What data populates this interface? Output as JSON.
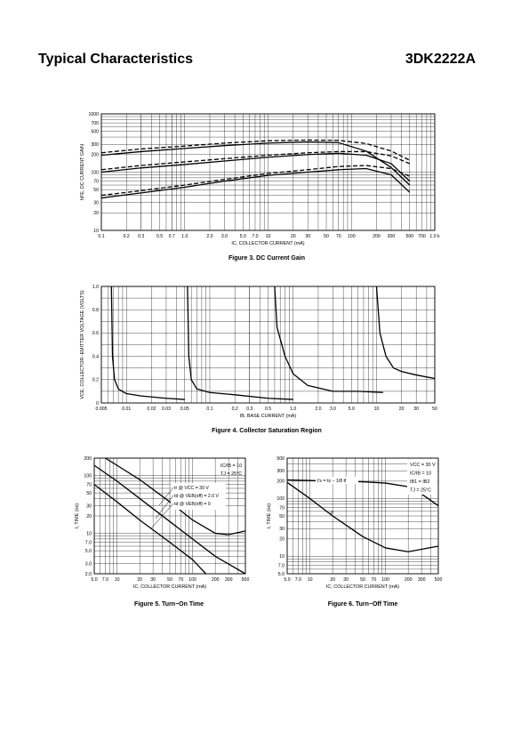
{
  "header": {
    "title": "Typical Characteristics",
    "part_number": "3DK2222A"
  },
  "figures": [
    {
      "caption": "Figure 3. DC Current Gain",
      "ylabel": "hFE, DC CURRENT GAIN",
      "xlabel": "IC, COLLECTOR CURRENT (mA)"
    },
    {
      "caption": "Figure 4. Collector Saturation Region",
      "ylabel": "VCE, COLLECTOR−EMITTER VOLTAGE (VOLTS)",
      "xlabel": "IB, BASE CURRENT (mA)"
    },
    {
      "caption": "Figure 5. Turn−On Time",
      "ylabel": "t, TIME (ns)",
      "xlabel": "IC, COLLECTOR CURRENT (mA)",
      "conditions": [
        "IC/IB = 10",
        "TJ = 25°C"
      ],
      "legend": [
        "tr @ VCC = 30 V",
        "td @ VEB(off) = 2.0 V",
        "td @ VEB(off) = 0"
      ]
    },
    {
      "caption": "Figure 6. Turn−Off Time",
      "ylabel": "t, TIME (ns)",
      "xlabel": "IC, COLLECTOR CURRENT (mA)",
      "conditions": [
        "VCC = 30 V",
        "IC/IB = 10",
        "IB1 = IB2",
        "TJ = 25°C"
      ],
      "legend": [
        "t′s = ts − 1/8 tf",
        "tf"
      ]
    }
  ],
  "chart_data": [
    {
      "type": "line",
      "title": "Figure 3. DC Current Gain",
      "xlabel": "IC, COLLECTOR CURRENT (mA)",
      "ylabel": "hFE, DC CURRENT GAIN",
      "x_scale": "log",
      "y_scale": "log",
      "xlim": [
        0.1,
        1000
      ],
      "ylim": [
        10,
        1000
      ],
      "x_ticks": [
        "0.1",
        "0.2",
        "0.3",
        "0.5",
        "0.7",
        "1.0",
        "2.0",
        "3.0",
        "5.0",
        "7.0",
        "10",
        "20",
        "30",
        "50",
        "70",
        "100",
        "200",
        "300",
        "500",
        "700",
        "1.0 k"
      ],
      "y_ticks": [
        "10",
        "20",
        "30",
        "50",
        "70",
        "100",
        "200",
        "300",
        "500",
        "700",
        "1000"
      ],
      "grid": true,
      "series": [
        {
          "style": "dashed",
          "x": [
            0.1,
            0.3,
            1,
            3,
            10,
            30,
            70,
            150,
            300,
            500
          ],
          "y": [
            215,
            250,
            280,
            315,
            345,
            355,
            350,
            310,
            230,
            160
          ]
        },
        {
          "style": "solid",
          "x": [
            0.1,
            0.3,
            1,
            3,
            10,
            30,
            70,
            150,
            300,
            500
          ],
          "y": [
            195,
            225,
            255,
            285,
            315,
            330,
            320,
            230,
            120,
            60
          ]
        },
        {
          "style": "dashed",
          "x": [
            0.1,
            0.3,
            1,
            3,
            10,
            30,
            70,
            150,
            300,
            500
          ],
          "y": [
            110,
            130,
            150,
            170,
            195,
            215,
            225,
            225,
            190,
            140
          ]
        },
        {
          "style": "solid",
          "x": [
            0.1,
            0.3,
            1,
            3,
            10,
            30,
            70,
            150,
            300,
            500
          ],
          "y": [
            100,
            118,
            135,
            155,
            180,
            200,
            210,
            195,
            140,
            70
          ]
        },
        {
          "style": "dashed",
          "x": [
            0.1,
            0.3,
            1,
            3,
            10,
            30,
            70,
            150,
            300,
            500
          ],
          "y": [
            40,
            48,
            60,
            75,
            95,
            110,
            125,
            130,
            115,
            85
          ]
        },
        {
          "style": "solid",
          "x": [
            0.1,
            0.3,
            1,
            3,
            10,
            30,
            70,
            150,
            300,
            500
          ],
          "y": [
            36,
            44,
            55,
            70,
            88,
            100,
            110,
            115,
            90,
            45
          ]
        }
      ]
    },
    {
      "type": "line",
      "title": "Figure 4. Collector Saturation Region",
      "xlabel": "IB, BASE CURRENT (mA)",
      "ylabel": "VCE, COLLECTOR−EMITTER VOLTAGE (VOLTS)",
      "x_scale": "log",
      "xlim": [
        0.005,
        50
      ],
      "ylim": [
        0,
        1.0
      ],
      "x_ticks": [
        "0.005",
        "0.01",
        "0.02",
        "0.03",
        "0.05",
        "0.1",
        "0.2",
        "0.3",
        "0.5",
        "1.0",
        "2.0",
        "3.0",
        "5.0",
        "10",
        "20",
        "30",
        "50"
      ],
      "y_ticks": [
        "0",
        "0.2",
        "0.4",
        "0.6",
        "0.8",
        "1.0"
      ],
      "grid": true,
      "series": [
        {
          "x": [
            0.0066,
            0.0068,
            0.0072,
            0.008,
            0.01,
            0.015,
            0.03,
            0.05
          ],
          "y": [
            1.0,
            0.4,
            0.2,
            0.12,
            0.08,
            0.06,
            0.04,
            0.03
          ]
        },
        {
          "x": [
            0.054,
            0.056,
            0.06,
            0.07,
            0.1,
            0.2,
            0.5,
            1.0
          ],
          "y": [
            1.0,
            0.4,
            0.2,
            0.12,
            0.09,
            0.07,
            0.04,
            0.03
          ]
        },
        {
          "x": [
            0.6,
            0.64,
            0.8,
            1.0,
            1.5,
            3.0,
            6.0,
            12.0
          ],
          "y": [
            1.0,
            0.65,
            0.4,
            0.25,
            0.15,
            0.1,
            0.1,
            0.09
          ]
        },
        {
          "x": [
            10,
            11,
            13,
            16,
            20,
            30,
            50
          ],
          "y": [
            1.0,
            0.6,
            0.4,
            0.3,
            0.27,
            0.24,
            0.21
          ]
        }
      ]
    },
    {
      "type": "line",
      "title": "Figure 5. Turn−On Time",
      "xlabel": "IC, COLLECTOR CURRENT (mA)",
      "ylabel": "t, TIME (ns)",
      "x_scale": "log",
      "y_scale": "log",
      "xlim": [
        5,
        500
      ],
      "ylim": [
        2,
        200
      ],
      "x_ticks": [
        "5.0",
        "7.0",
        "10",
        "20",
        "30",
        "50",
        "70",
        "100",
        "200",
        "300",
        "500"
      ],
      "y_ticks": [
        "2.0",
        "3.0",
        "5.0",
        "7.0",
        "10",
        "20",
        "30",
        "50",
        "70",
        "100",
        "200"
      ],
      "grid": true,
      "series": [
        {
          "name": "tr @ VCC = 30 V",
          "x": [
            7,
            10,
            20,
            50,
            100,
            200,
            300,
            500
          ],
          "y": [
            200,
            150,
            85,
            35,
            17,
            10,
            9.5,
            11
          ]
        },
        {
          "name": "td @ VEB(off) = 2.0 V",
          "x": [
            5,
            10,
            20,
            50,
            100,
            200,
            500
          ],
          "y": [
            150,
            80,
            40,
            16,
            8,
            4,
            2
          ]
        },
        {
          "name": "td @ VEB(off) = 0",
          "x": [
            5,
            10,
            20,
            50,
            100,
            150
          ],
          "y": [
            70,
            35,
            17,
            7,
            3.5,
            2
          ]
        }
      ]
    },
    {
      "type": "line",
      "title": "Figure 6. Turn−Off Time",
      "xlabel": "IC, COLLECTOR CURRENT (mA)",
      "ylabel": "t, TIME (ns)",
      "x_scale": "log",
      "y_scale": "log",
      "xlim": [
        5,
        500
      ],
      "ylim": [
        5,
        500
      ],
      "x_ticks": [
        "5.0",
        "7.0",
        "10",
        "20",
        "30",
        "50",
        "70",
        "100",
        "200",
        "300",
        "500"
      ],
      "y_ticks": [
        "5.0",
        "7.0",
        "10",
        "20",
        "30",
        "50",
        "70",
        "100",
        "200",
        "300",
        "500"
      ],
      "grid": true,
      "series": [
        {
          "name": "t′s = ts − 1/8 tf",
          "x": [
            5,
            10,
            20,
            50,
            100,
            200,
            300,
            500
          ],
          "y": [
            210,
            205,
            200,
            195,
            185,
            160,
            120,
            75
          ]
        },
        {
          "name": "tf",
          "x": [
            5,
            10,
            20,
            50,
            100,
            200,
            500
          ],
          "y": [
            190,
            100,
            50,
            22,
            14,
            12,
            15
          ]
        }
      ]
    }
  ]
}
